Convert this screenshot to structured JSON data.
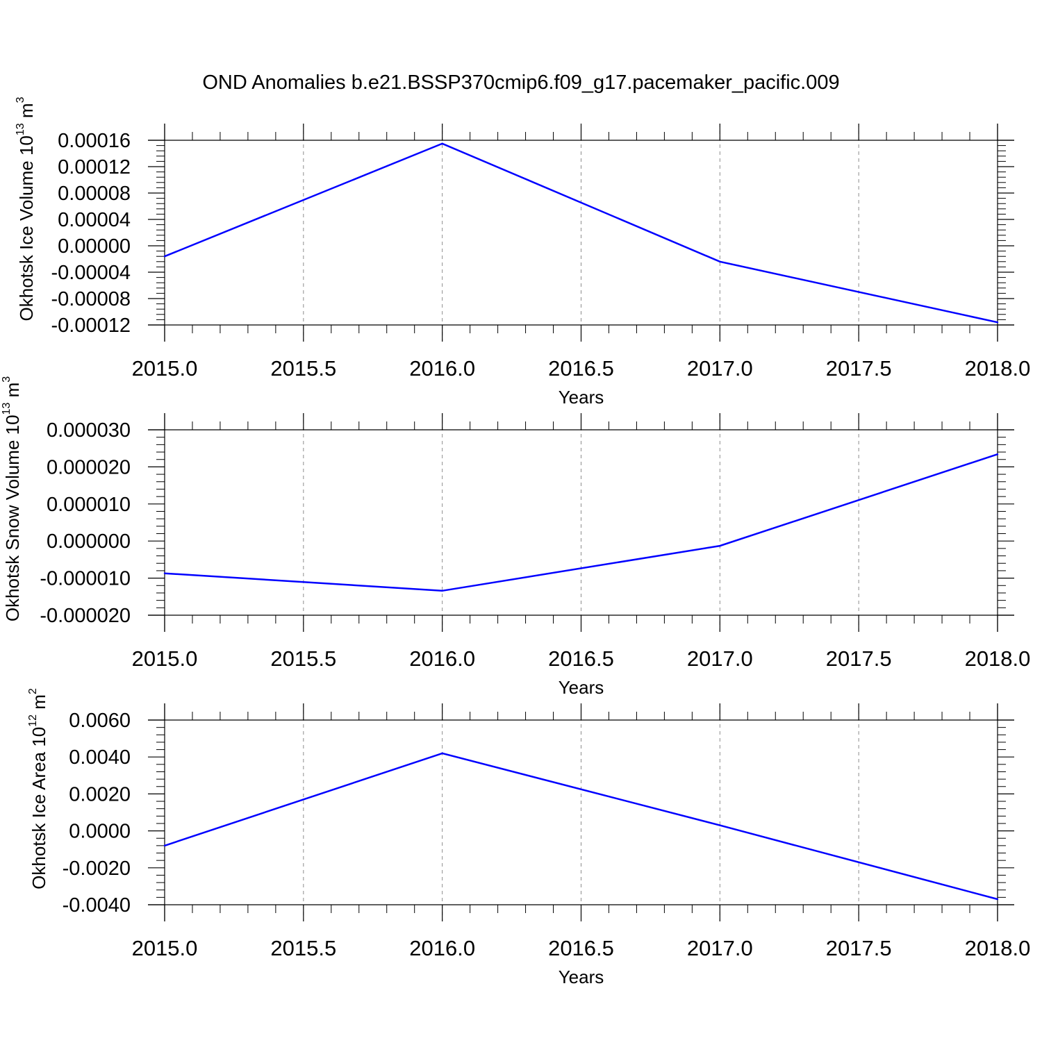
{
  "title": "OND Anomalies b.e21.BSSP370cmip6.f09_g17.pacemaker_pacific.009",
  "colors": {
    "line": "#0000ff",
    "axis": "#000000",
    "grid": "#8c8c8c"
  },
  "chart_data": [
    {
      "type": "line",
      "xlabel": "Years",
      "ylabel": {
        "text": "Okhotsk Ice Volume 10",
        "exp": "13",
        "unit": " m",
        "unit_exp": "3"
      },
      "x": [
        2015,
        2016,
        2017,
        2018
      ],
      "series": [
        {
          "values": [
            -1.6e-05,
            0.000155,
            -2.4e-05,
            -0.000116
          ]
        }
      ],
      "xlim": [
        2015,
        2018
      ],
      "ylim": [
        -0.00012,
        0.00016
      ],
      "xticks": [
        2015.0,
        2015.5,
        2016.0,
        2016.5,
        2017.0,
        2017.5,
        2018.0
      ],
      "xtick_labels": [
        "2015.0",
        "2015.5",
        "2016.0",
        "2016.5",
        "2017.0",
        "2017.5",
        "2018.0"
      ],
      "yticks": [
        0.00016,
        0.00012,
        8e-05,
        4e-05,
        0.0,
        -4e-05,
        -8e-05,
        -0.00012
      ],
      "ytick_labels": [
        "0.00016",
        "0.00012",
        "0.00008",
        "0.00004",
        "0.00000",
        "-0.00004",
        "-0.00008",
        "-0.00012"
      ],
      "grid": "vertical-dashed"
    },
    {
      "type": "line",
      "xlabel": "Years",
      "ylabel": {
        "text": "Okhotsk Snow Volume 10",
        "exp": "13",
        "unit": " m",
        "unit_exp": "3"
      },
      "x": [
        2015,
        2016,
        2017,
        2018
      ],
      "series": [
        {
          "values": [
            -8.7e-06,
            -1.34e-05,
            -1.3e-06,
            2.34e-05
          ]
        }
      ],
      "xlim": [
        2015,
        2018
      ],
      "ylim": [
        -2e-05,
        3e-05
      ],
      "xticks": [
        2015.0,
        2015.5,
        2016.0,
        2016.5,
        2017.0,
        2017.5,
        2018.0
      ],
      "xtick_labels": [
        "2015.0",
        "2015.5",
        "2016.0",
        "2016.5",
        "2017.0",
        "2017.5",
        "2018.0"
      ],
      "yticks": [
        3e-05,
        2e-05,
        1e-05,
        0.0,
        -1e-05,
        -2e-05
      ],
      "ytick_labels": [
        "0.000030",
        "0.000020",
        "0.000010",
        "0.000000",
        "-0.000010",
        "-0.000020"
      ],
      "grid": "vertical-dashed"
    },
    {
      "type": "line",
      "xlabel": "Years",
      "ylabel": {
        "text": "Okhotsk Ice Area 10",
        "exp": "12",
        "unit": " m",
        "unit_exp": "2"
      },
      "x": [
        2015,
        2016,
        2017,
        2018
      ],
      "series": [
        {
          "values": [
            -0.0008,
            0.0042,
            0.0003,
            -0.0037
          ]
        }
      ],
      "xlim": [
        2015,
        2018
      ],
      "ylim": [
        -0.004,
        0.006
      ],
      "xticks": [
        2015.0,
        2015.5,
        2016.0,
        2016.5,
        2017.0,
        2017.5,
        2018.0
      ],
      "xtick_labels": [
        "2015.0",
        "2015.5",
        "2016.0",
        "2016.5",
        "2017.0",
        "2017.5",
        "2018.0"
      ],
      "yticks": [
        0.006,
        0.004,
        0.002,
        0.0,
        -0.002,
        -0.004
      ],
      "ytick_labels": [
        "0.0060",
        "0.0040",
        "0.0020",
        "0.0000",
        "-0.0020",
        "-0.0040"
      ],
      "grid": "vertical-dashed"
    }
  ]
}
